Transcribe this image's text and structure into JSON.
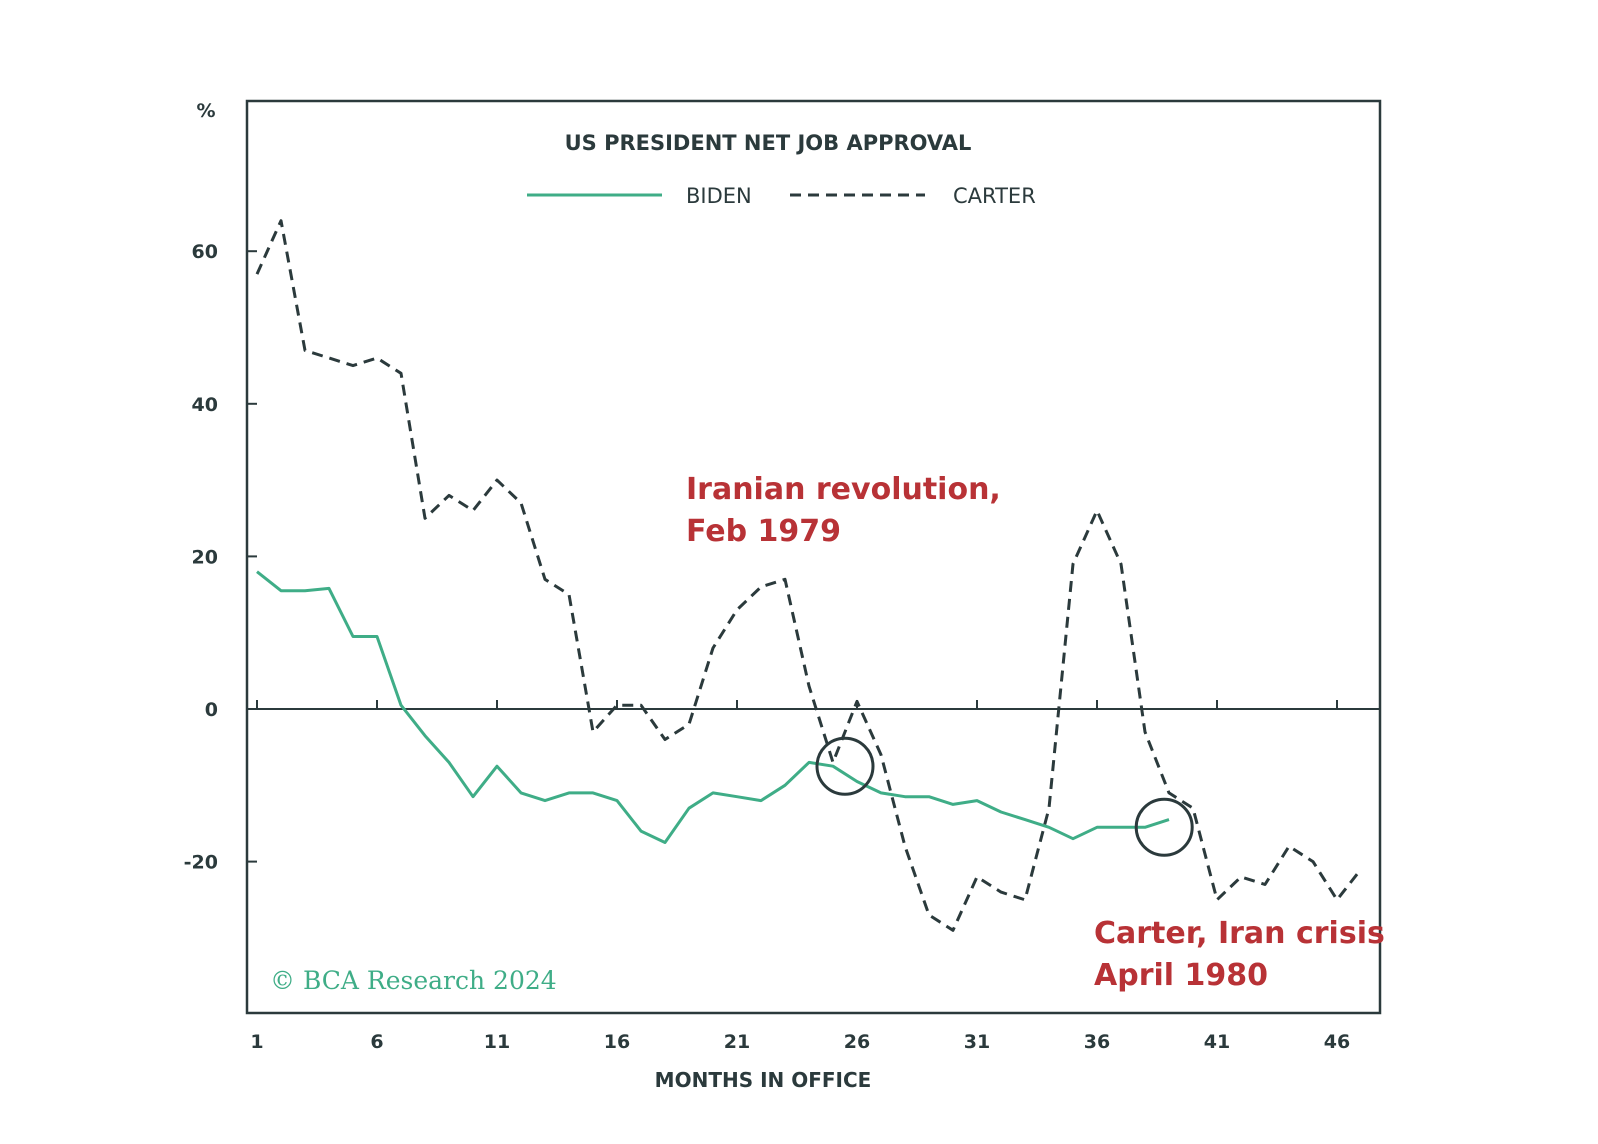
{
  "chart_data": {
    "type": "line",
    "title": "US PRESIDENT NET JOB APPROVAL",
    "xlabel": "MONTHS IN OFFICE",
    "ylabel": "%",
    "xlim": [
      1,
      47
    ],
    "ylim": [
      -40,
      80
    ],
    "x_ticks": [
      1,
      6,
      11,
      16,
      21,
      26,
      31,
      36,
      41,
      46
    ],
    "y_ticks": [
      60,
      40,
      20,
      0,
      -20
    ],
    "grid": false,
    "legend_position": "top",
    "series": [
      {
        "name": "BIDEN",
        "style": "solid",
        "color": "#3fad87",
        "x": [
          1,
          2,
          3,
          4,
          5,
          6,
          7,
          8,
          9,
          10,
          11,
          12,
          13,
          14,
          15,
          16,
          17,
          18,
          19,
          20,
          21,
          22,
          23,
          24,
          25,
          26,
          27,
          28,
          29,
          30,
          31,
          32,
          33,
          34,
          35,
          36,
          37,
          38,
          39
        ],
        "values": [
          18,
          15.5,
          15.5,
          15.8,
          9.5,
          9.5,
          0.5,
          -3.5,
          -7,
          -11.5,
          -7.5,
          -11,
          -12,
          -11,
          -11,
          -12,
          -16,
          -17.5,
          -13,
          -11,
          -11.5,
          -12,
          -10,
          -7,
          -7.5,
          -9.5,
          -11,
          -11.5,
          -11.5,
          -12.5,
          -12,
          -13.5,
          -14.5,
          -15.5,
          -17,
          -15.5,
          -15.5,
          -15.5,
          -14.5
        ]
      },
      {
        "name": "CARTER",
        "style": "dashed",
        "color": "#2b3a3c",
        "x": [
          1,
          2,
          3,
          4,
          5,
          6,
          7,
          8,
          9,
          10,
          11,
          12,
          13,
          14,
          15,
          16,
          17,
          18,
          19,
          20,
          21,
          22,
          23,
          24,
          25,
          26,
          27,
          28,
          29,
          30,
          31,
          32,
          33,
          34,
          35,
          36,
          37,
          38,
          39,
          40,
          41,
          42,
          43,
          44,
          45,
          46,
          47
        ],
        "values": [
          57,
          64,
          47,
          46,
          45,
          46,
          44,
          25,
          28,
          26,
          30,
          27,
          17,
          15,
          -3,
          0.5,
          0.5,
          -4,
          -2,
          8,
          13,
          16,
          17,
          3,
          -7,
          1,
          -6,
          -18,
          -27,
          -29,
          -22,
          -24,
          -25,
          -13,
          19,
          26,
          19,
          -3,
          -11,
          -13,
          -25,
          -22,
          -23,
          -18,
          -20,
          -25,
          -21
        ]
      }
    ],
    "annotations": [
      {
        "text_line1": "Iranian revolution,",
        "text_line2": "Feb 1979",
        "x": 25.5,
        "y": -7.5
      },
      {
        "text_line1": "Carter, Iran crisis",
        "text_line2": "April 1980",
        "x": 38.8,
        "y": -15.5
      }
    ],
    "copyright": "© BCA Research 2024",
    "colors": {
      "biden": "#3fad87",
      "carter": "#2b3a3c",
      "annotation": "#b83236",
      "frame": "#2b3a3c"
    }
  }
}
